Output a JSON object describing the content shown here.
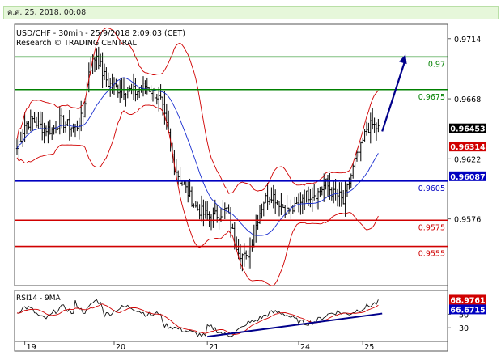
{
  "header": {
    "date_label": "ค.ศ. 25, 2018, 00:08"
  },
  "chart_data": {
    "type": "line",
    "title": "USD/CHF - 30min - 25/9/2018 2:09:03 (CET)",
    "subtitle": "Research © TRADING CENTRAL",
    "price_axis": {
      "ticks": [
        "0.9714",
        "0.9668",
        "0.9622",
        "0.9576"
      ],
      "tick_values": [
        0.9714,
        0.9668,
        0.9622,
        0.9576
      ],
      "ylim": [
        0.9525,
        0.9725
      ]
    },
    "x_axis": {
      "ticks": [
        "19",
        "20",
        "21",
        "24",
        "25"
      ],
      "tick_index": [
        4,
        50,
        98,
        145,
        178
      ],
      "n": 200
    },
    "levels": [
      {
        "label": "0.97",
        "value": 0.97,
        "color": "#008000"
      },
      {
        "label": "0.9675",
        "value": 0.9675,
        "color": "#008000"
      },
      {
        "label": "0.9605",
        "value": 0.9605,
        "color": "#0000c0"
      },
      {
        "label": "0.9575",
        "value": 0.9575,
        "color": "#d00000"
      },
      {
        "label": "0.9555",
        "value": 0.9555,
        "color": "#d00000"
      }
    ],
    "price_badges": [
      {
        "label": "0.96453",
        "value": 0.96453,
        "bg": "#000000",
        "fg": "#ffffff"
      },
      {
        "label": "0.96314",
        "value": 0.96314,
        "bg": "#d00000",
        "fg": "#ffffff"
      },
      {
        "label": "0.96087",
        "value": 0.96087,
        "bg": "#0000c0",
        "fg": "#ffffff"
      }
    ],
    "projection": {
      "from": {
        "x": 188,
        "value": 0.9643
      },
      "to": {
        "x": 200,
        "value": 0.9702
      },
      "color": "#00008b"
    },
    "close_keypoints": [
      [
        0,
        0.963
      ],
      [
        4,
        0.9648
      ],
      [
        8,
        0.9652
      ],
      [
        13,
        0.9646
      ],
      [
        18,
        0.9644
      ],
      [
        22,
        0.9651
      ],
      [
        26,
        0.9648
      ],
      [
        30,
        0.9645
      ],
      [
        34,
        0.9655
      ],
      [
        37,
        0.969
      ],
      [
        41,
        0.9702
      ],
      [
        44,
        0.9688
      ],
      [
        47,
        0.968
      ],
      [
        51,
        0.9676
      ],
      [
        56,
        0.9675
      ],
      [
        61,
        0.9673
      ],
      [
        66,
        0.9678
      ],
      [
        71,
        0.9672
      ],
      [
        74,
        0.9666
      ],
      [
        78,
        0.964
      ],
      [
        81,
        0.9617
      ],
      [
        84,
        0.9606
      ],
      [
        88,
        0.9596
      ],
      [
        92,
        0.9585
      ],
      [
        96,
        0.958
      ],
      [
        100,
        0.9577
      ],
      [
        104,
        0.958
      ],
      [
        108,
        0.9583
      ],
      [
        112,
        0.956
      ],
      [
        115,
        0.955
      ],
      [
        118,
        0.9545
      ],
      [
        121,
        0.956
      ],
      [
        124,
        0.9577
      ],
      [
        127,
        0.959
      ],
      [
        131,
        0.9595
      ],
      [
        135,
        0.9589
      ],
      [
        139,
        0.9582
      ],
      [
        143,
        0.9584
      ],
      [
        147,
        0.9593
      ],
      [
        151,
        0.9595
      ],
      [
        155,
        0.9596
      ],
      [
        159,
        0.9603
      ],
      [
        163,
        0.9595
      ],
      [
        166,
        0.9593
      ],
      [
        168,
        0.9588
      ],
      [
        171,
        0.9604
      ],
      [
        174,
        0.962
      ],
      [
        177,
        0.963
      ],
      [
        180,
        0.9645
      ],
      [
        183,
        0.9648
      ],
      [
        186,
        0.9645
      ]
    ],
    "rsi": {
      "label": "RSI14 - 9MA",
      "ticks": [
        "50",
        "30"
      ],
      "tick_values": [
        50,
        30
      ],
      "ylim": [
        10,
        85
      ],
      "badges": [
        {
          "label": "68.9761",
          "value": 68.9761,
          "bg": "#d00000",
          "fg": "#ffffff"
        },
        {
          "label": "66.6715",
          "value": 66.6715,
          "bg": "#0000c0",
          "fg": "#ffffff"
        }
      ],
      "trendline": {
        "from": {
          "x": 98,
          "value": 17
        },
        "to": {
          "x": 188,
          "value": 51
        },
        "color": "#00008b"
      }
    }
  }
}
